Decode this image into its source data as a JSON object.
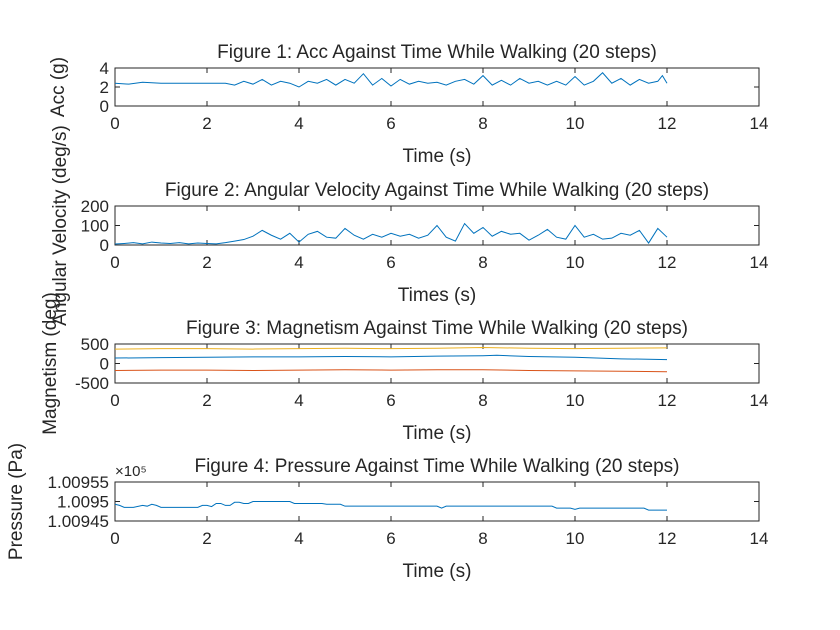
{
  "colors": {
    "blue": "#0072BD",
    "orange": "#D95319",
    "yellow": "#EDB120",
    "axis": "#262626"
  },
  "chart_data": [
    {
      "type": "line",
      "title": "Figure 1: Acc Against Time While Walking (20 steps)",
      "xlabel": "Time (s)",
      "ylabel": "Acc (g)",
      "xlim": [
        0,
        14
      ],
      "ylim": [
        0,
        4
      ],
      "xticks": [
        "0",
        "2",
        "4",
        "6",
        "8",
        "10",
        "12",
        "14"
      ],
      "yticks": [
        "0",
        "2",
        "4"
      ],
      "exponent": "",
      "series": [
        {
          "color": "#0072BD",
          "x": [
            0,
            0.3,
            0.6,
            1,
            1.5,
            2,
            2.4,
            2.6,
            2.8,
            3,
            3.2,
            3.4,
            3.6,
            3.8,
            4,
            4.2,
            4.4,
            4.6,
            4.8,
            5,
            5.2,
            5.4,
            5.6,
            5.8,
            6,
            6.2,
            6.4,
            6.6,
            6.8,
            7,
            7.2,
            7.4,
            7.6,
            7.8,
            8,
            8.2,
            8.4,
            8.6,
            8.8,
            9,
            9.2,
            9.4,
            9.6,
            9.8,
            10,
            10.2,
            10.4,
            10.6,
            10.8,
            11,
            11.2,
            11.4,
            11.6,
            11.8,
            11.9,
            12
          ],
          "y": [
            2.4,
            2.3,
            2.5,
            2.4,
            2.4,
            2.4,
            2.4,
            2.2,
            2.6,
            2.3,
            2.8,
            2.2,
            2.6,
            2.4,
            2.0,
            2.6,
            2.4,
            2.8,
            2.2,
            2.8,
            2.4,
            3.4,
            2.2,
            2.9,
            2.1,
            2.8,
            2.3,
            2.6,
            2.4,
            2.5,
            2.2,
            2.6,
            2.8,
            2.3,
            3.2,
            2.2,
            2.7,
            2.2,
            2.9,
            2.4,
            2.6,
            2.2,
            2.6,
            2.2,
            3.1,
            2.2,
            2.6,
            3.5,
            2.4,
            2.9,
            2.2,
            2.8,
            2.4,
            2.6,
            3.2,
            2.4
          ]
        }
      ]
    },
    {
      "type": "line",
      "title": "Figure 2: Angular Velocity Against Time While Walking (20 steps)",
      "xlabel": "Times (s)",
      "ylabel": "Angular Velocity (deg/s)",
      "xlim": [
        0,
        14
      ],
      "ylim": [
        0,
        200
      ],
      "xticks": [
        "0",
        "2",
        "4",
        "6",
        "8",
        "10",
        "12",
        "14"
      ],
      "yticks": [
        "0",
        "100",
        "200"
      ],
      "exponent": "",
      "series": [
        {
          "color": "#0072BD",
          "x": [
            0,
            0.2,
            0.4,
            0.6,
            0.8,
            1,
            1.2,
            1.4,
            1.6,
            1.8,
            2,
            2.2,
            2.4,
            2.6,
            2.8,
            3,
            3.2,
            3.4,
            3.6,
            3.8,
            4,
            4.2,
            4.4,
            4.6,
            4.8,
            5,
            5.2,
            5.4,
            5.6,
            5.8,
            6,
            6.2,
            6.4,
            6.6,
            6.8,
            7,
            7.2,
            7.4,
            7.6,
            7.8,
            8,
            8.2,
            8.4,
            8.6,
            8.8,
            9,
            9.2,
            9.4,
            9.6,
            9.8,
            10,
            10.2,
            10.4,
            10.6,
            10.8,
            11,
            11.2,
            11.4,
            11.6,
            11.8,
            12
          ],
          "y": [
            5,
            8,
            12,
            6,
            15,
            10,
            8,
            12,
            6,
            10,
            8,
            6,
            12,
            20,
            28,
            45,
            75,
            50,
            30,
            60,
            15,
            55,
            70,
            40,
            35,
            85,
            50,
            30,
            55,
            40,
            60,
            45,
            55,
            35,
            50,
            100,
            40,
            20,
            110,
            60,
            90,
            45,
            70,
            55,
            60,
            25,
            50,
            80,
            40,
            30,
            100,
            40,
            55,
            30,
            35,
            60,
            50,
            75,
            10,
            85,
            40
          ]
        }
      ]
    },
    {
      "type": "line",
      "title": "Figure 3: Magnetism Against Time While Walking (20 steps)",
      "xlabel": "Time (s)",
      "ylabel": "Magnetism (deg)",
      "xlim": [
        0,
        14
      ],
      "ylim": [
        -500,
        500
      ],
      "xticks": [
        "0",
        "2",
        "4",
        "6",
        "8",
        "10",
        "12",
        "14"
      ],
      "yticks": [
        "-500",
        "0",
        "500"
      ],
      "exponent": "",
      "series": [
        {
          "color": "#0072BD",
          "x": [
            0,
            1,
            2,
            3,
            4,
            5,
            6,
            7,
            8,
            8.3,
            9,
            10,
            11,
            12
          ],
          "y": [
            140,
            150,
            160,
            170,
            170,
            180,
            170,
            190,
            200,
            210,
            180,
            160,
            120,
            100
          ]
        },
        {
          "color": "#D95319",
          "x": [
            0,
            1,
            2,
            3,
            4,
            5,
            6,
            7,
            8,
            9,
            10,
            11,
            12
          ],
          "y": [
            -180,
            -170,
            -170,
            -180,
            -170,
            -160,
            -170,
            -160,
            -160,
            -180,
            -190,
            -200,
            -210
          ]
        },
        {
          "color": "#EDB120",
          "x": [
            0,
            1,
            2,
            3,
            4,
            5,
            6,
            7,
            8,
            9,
            10,
            11,
            12
          ],
          "y": [
            370,
            380,
            380,
            370,
            380,
            390,
            380,
            390,
            410,
            390,
            380,
            390,
            400
          ]
        }
      ]
    },
    {
      "type": "line",
      "title": "Figure 4: Pressure Against Time While Walking (20 steps)",
      "xlabel": "Time (s)",
      "ylabel": "Pressure (Pa)",
      "xlim": [
        0,
        14
      ],
      "ylim": [
        1.00945,
        1.00955
      ],
      "xticks": [
        "0",
        "2",
        "4",
        "6",
        "8",
        "10",
        "12",
        "14"
      ],
      "yticks": [
        "1.00945",
        "1.0095",
        "1.00955"
      ],
      "exponent": "×10⁵",
      "series": [
        {
          "color": "#0072BD",
          "x": [
            0,
            0.1,
            0.2,
            0.4,
            0.6,
            0.7,
            0.8,
            0.9,
            1.0,
            1.1,
            1.8,
            1.9,
            2.0,
            2.1,
            2.2,
            2.3,
            2.4,
            2.5,
            2.6,
            2.7,
            2.8,
            2.9,
            3.0,
            3.1,
            3.2,
            3.3,
            3.8,
            3.9,
            4.5,
            4.6,
            4.9,
            5.0,
            6.0,
            7.0,
            7.1,
            7.2,
            8.0,
            9.5,
            9.6,
            9.9,
            10.0,
            10.1,
            11.5,
            11.6,
            12
          ],
          "y": [
            1.009493,
            1.00949,
            1.009485,
            1.009485,
            1.00949,
            1.009488,
            1.009493,
            1.00949,
            1.009485,
            1.009485,
            1.009485,
            1.00949,
            1.00949,
            1.009487,
            1.009495,
            1.009495,
            1.00949,
            1.00949,
            1.009498,
            1.009498,
            1.009495,
            1.009495,
            1.0095,
            1.0095,
            1.0095,
            1.0095,
            1.0095,
            1.009495,
            1.009495,
            1.009493,
            1.009493,
            1.009488,
            1.009488,
            1.009488,
            1.009483,
            1.009488,
            1.009488,
            1.009488,
            1.009483,
            1.009483,
            1.00948,
            1.009483,
            1.009483,
            1.009478,
            1.009478
          ]
        }
      ]
    }
  ]
}
